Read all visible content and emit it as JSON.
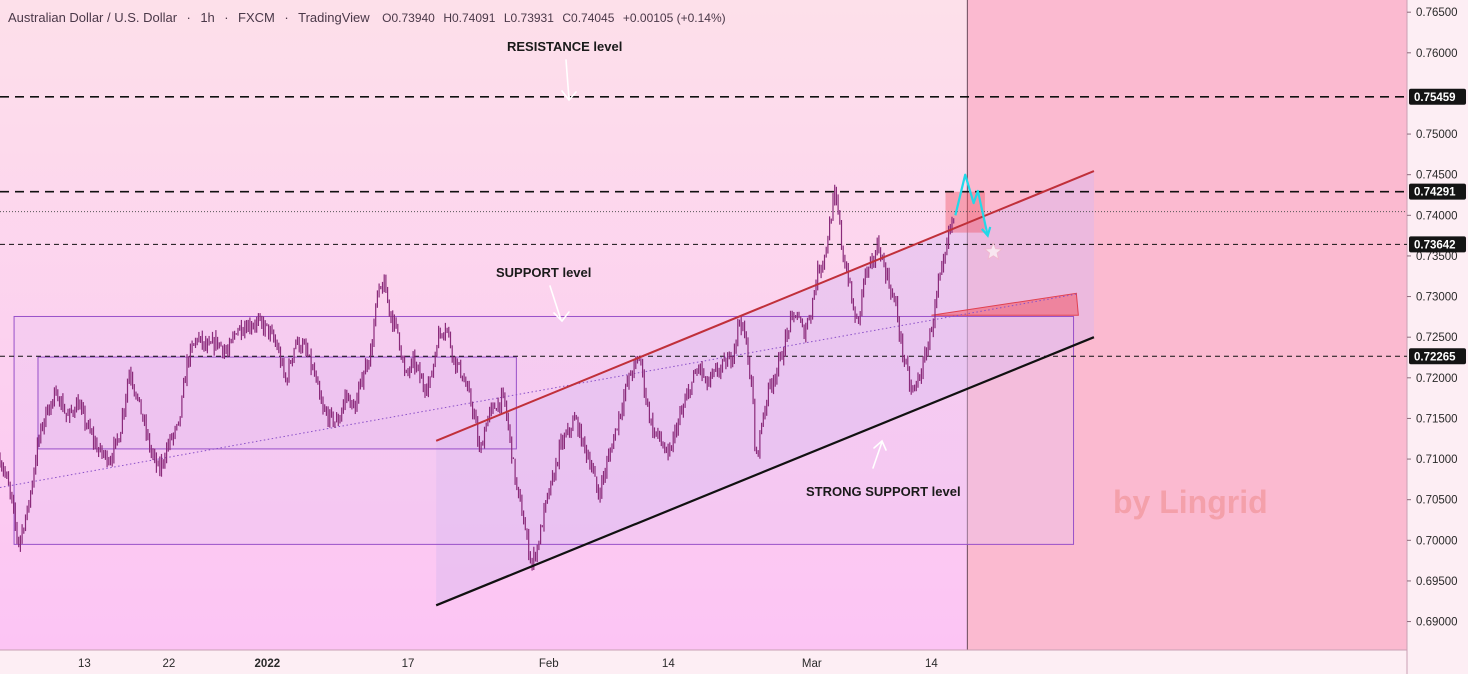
{
  "header": {
    "symbol": "Australian Dollar / U.S. Dollar",
    "interval": "1h",
    "exchange": "FXCM",
    "platform": "TradingView",
    "sep": "·",
    "open_label": "O",
    "open": "0.73940",
    "high_label": "H",
    "high": "0.74091",
    "low_label": "L",
    "low": "0.73931",
    "close_label": "C",
    "close": "0.74045",
    "change": "+0.00105 (+0.14%)"
  },
  "annotations": {
    "resistance": "RESISTANCE level",
    "support": "SUPPORT level",
    "strong_support": "STRONG SUPPORT level",
    "watermark": "by Lingrid"
  },
  "colors": {
    "background_top": "#fde0ea",
    "background_bottom": "#fcc4f4",
    "forecast_zone": "#fbbad0",
    "candle": "#8a2a7a",
    "resistance_trendline": "#c0303a",
    "support_trendline": "#111111",
    "forecast_path": "#22d8e8",
    "badge": "#141414",
    "box_stroke": "#9850c8"
  },
  "chart_data": {
    "type": "candlestick",
    "y_axis": {
      "ylim": [
        0.6865,
        0.7665
      ],
      "ticks": [
        "0.76500",
        "0.76000",
        "0.75000",
        "0.74500",
        "0.74000",
        "0.73500",
        "0.73000",
        "0.72500",
        "0.72000",
        "0.71500",
        "0.71000",
        "0.70500",
        "0.70000",
        "0.69500",
        "0.69000"
      ],
      "tick_values": [
        0.765,
        0.76,
        0.75,
        0.745,
        0.74,
        0.735,
        0.73,
        0.725,
        0.72,
        0.715,
        0.71,
        0.705,
        0.7,
        0.695,
        0.69
      ]
    },
    "x_axis": {
      "ticks": [
        {
          "label": "13",
          "pos": 0.06,
          "bold": false
        },
        {
          "label": "22",
          "pos": 0.12,
          "bold": false
        },
        {
          "label": "2022",
          "pos": 0.19,
          "bold": true
        },
        {
          "label": "17",
          "pos": 0.29,
          "bold": false
        },
        {
          "label": "Feb",
          "pos": 0.39,
          "bold": false
        },
        {
          "label": "14",
          "pos": 0.475,
          "bold": false
        },
        {
          "label": "Mar",
          "pos": 0.577,
          "bold": false
        },
        {
          "label": "14",
          "pos": 0.662,
          "bold": false
        }
      ]
    },
    "horizontal_levels": [
      {
        "price": 0.75459,
        "label": "0.75459",
        "style": "long-dash"
      },
      {
        "price": 0.74291,
        "label": "0.74291",
        "style": "long-dash"
      },
      {
        "price": 0.73642,
        "label": "0.73642",
        "style": "short-dash"
      },
      {
        "price": 0.72265,
        "label": "0.72265",
        "style": "short-dash"
      }
    ],
    "current_price": 0.74045,
    "trendlines": [
      {
        "name": "resistance",
        "from": [
          0.31,
          0.71225
        ],
        "to": [
          0.7775,
          0.74545
        ]
      },
      {
        "name": "support",
        "from": [
          0.31,
          0.692
        ],
        "to": [
          0.7775,
          0.725
        ]
      },
      {
        "name": "long-support",
        "from": [
          0.0,
          0.7065
        ],
        "to": [
          0.765,
          0.7303
        ]
      }
    ],
    "boxes": [
      {
        "from": [
          0.01,
          0.72755
        ],
        "to": [
          0.763,
          0.6995
        ]
      },
      {
        "from": [
          0.027,
          0.72255
        ],
        "to": [
          0.367,
          0.71125
        ]
      }
    ],
    "zones": [
      {
        "from": [
          0.672,
          0.74291
        ],
        "to": [
          0.7,
          0.73787
        ]
      },
      {
        "from": [
          0.662,
          0.7277
        ],
        "to": [
          0.765,
          0.7304
        ]
      }
    ],
    "price_path": [
      [
        0.0,
        0.71
      ],
      [
        0.004,
        0.708
      ],
      [
        0.008,
        0.705
      ],
      [
        0.013,
        0.6995
      ],
      [
        0.02,
        0.704
      ],
      [
        0.027,
        0.712
      ],
      [
        0.033,
        0.716
      ],
      [
        0.041,
        0.718
      ],
      [
        0.048,
        0.715
      ],
      [
        0.055,
        0.717
      ],
      [
        0.062,
        0.714
      ],
      [
        0.07,
        0.711
      ],
      [
        0.078,
        0.71
      ],
      [
        0.085,
        0.713
      ],
      [
        0.092,
        0.721
      ],
      [
        0.1,
        0.716
      ],
      [
        0.107,
        0.711
      ],
      [
        0.113,
        0.7085
      ],
      [
        0.12,
        0.712
      ],
      [
        0.127,
        0.714
      ],
      [
        0.133,
        0.722
      ],
      [
        0.14,
        0.725
      ],
      [
        0.147,
        0.7235
      ],
      [
        0.154,
        0.7245
      ],
      [
        0.162,
        0.723
      ],
      [
        0.168,
        0.726
      ],
      [
        0.176,
        0.7265
      ],
      [
        0.183,
        0.7268
      ],
      [
        0.19,
        0.726
      ],
      [
        0.197,
        0.7238
      ],
      [
        0.203,
        0.7195
      ],
      [
        0.21,
        0.7245
      ],
      [
        0.217,
        0.7235
      ],
      [
        0.224,
        0.72
      ],
      [
        0.229,
        0.716
      ],
      [
        0.235,
        0.715
      ],
      [
        0.24,
        0.7145
      ],
      [
        0.246,
        0.718
      ],
      [
        0.252,
        0.716
      ],
      [
        0.258,
        0.7205
      ],
      [
        0.264,
        0.7235
      ],
      [
        0.268,
        0.73
      ],
      [
        0.273,
        0.7315
      ],
      [
        0.278,
        0.7275
      ],
      [
        0.283,
        0.7255
      ],
      [
        0.288,
        0.72
      ],
      [
        0.294,
        0.722
      ],
      [
        0.301,
        0.719
      ],
      [
        0.306,
        0.7195
      ],
      [
        0.311,
        0.725
      ],
      [
        0.317,
        0.7265
      ],
      [
        0.323,
        0.722
      ],
      [
        0.327,
        0.721
      ],
      [
        0.332,
        0.7185
      ],
      [
        0.337,
        0.7155
      ],
      [
        0.341,
        0.7105
      ],
      [
        0.346,
        0.715
      ],
      [
        0.352,
        0.7165
      ],
      [
        0.358,
        0.7175
      ],
      [
        0.362,
        0.713
      ],
      [
        0.367,
        0.7065
      ],
      [
        0.371,
        0.7035
      ],
      [
        0.375,
        0.6995
      ],
      [
        0.378,
        0.697
      ],
      [
        0.383,
        0.7
      ],
      [
        0.388,
        0.7045
      ],
      [
        0.393,
        0.7075
      ],
      [
        0.398,
        0.7115
      ],
      [
        0.403,
        0.713
      ],
      [
        0.409,
        0.715
      ],
      [
        0.414,
        0.712
      ],
      [
        0.42,
        0.7095
      ],
      [
        0.425,
        0.7055
      ],
      [
        0.43,
        0.7085
      ],
      [
        0.436,
        0.7125
      ],
      [
        0.441,
        0.716
      ],
      [
        0.446,
        0.7195
      ],
      [
        0.451,
        0.7215
      ],
      [
        0.455,
        0.7225
      ],
      [
        0.459,
        0.7175
      ],
      [
        0.464,
        0.7135
      ],
      [
        0.469,
        0.7125
      ],
      [
        0.475,
        0.71
      ],
      [
        0.48,
        0.7135
      ],
      [
        0.486,
        0.7165
      ],
      [
        0.492,
        0.7195
      ],
      [
        0.497,
        0.7215
      ],
      [
        0.502,
        0.719
      ],
      [
        0.508,
        0.7205
      ],
      [
        0.514,
        0.7215
      ],
      [
        0.52,
        0.7225
      ],
      [
        0.526,
        0.7275
      ],
      [
        0.531,
        0.7235
      ],
      [
        0.535,
        0.7175
      ],
      [
        0.537,
        0.7095
      ],
      [
        0.541,
        0.714
      ],
      [
        0.546,
        0.7185
      ],
      [
        0.551,
        0.7205
      ],
      [
        0.556,
        0.723
      ],
      [
        0.561,
        0.7265
      ],
      [
        0.566,
        0.728
      ],
      [
        0.571,
        0.7255
      ],
      [
        0.576,
        0.728
      ],
      [
        0.581,
        0.733
      ],
      [
        0.586,
        0.735
      ],
      [
        0.589,
        0.738
      ],
      [
        0.593,
        0.7425
      ],
      [
        0.596,
        0.74
      ],
      [
        0.599,
        0.735
      ],
      [
        0.603,
        0.7325
      ],
      [
        0.606,
        0.7285
      ],
      [
        0.61,
        0.7265
      ],
      [
        0.614,
        0.7325
      ],
      [
        0.619,
        0.7335
      ],
      [
        0.624,
        0.7365
      ],
      [
        0.628,
        0.734
      ],
      [
        0.632,
        0.7315
      ],
      [
        0.637,
        0.7285
      ],
      [
        0.641,
        0.7235
      ],
      [
        0.645,
        0.7205
      ],
      [
        0.648,
        0.718
      ],
      [
        0.652,
        0.7195
      ],
      [
        0.656,
        0.7215
      ],
      [
        0.66,
        0.7245
      ],
      [
        0.663,
        0.727
      ],
      [
        0.667,
        0.7315
      ],
      [
        0.671,
        0.734
      ],
      [
        0.675,
        0.7385
      ],
      [
        0.679,
        0.74
      ]
    ],
    "forecast": [
      [
        0.679,
        0.74
      ],
      [
        0.686,
        0.745
      ],
      [
        0.692,
        0.7415
      ],
      [
        0.695,
        0.743
      ],
      [
        0.702,
        0.7375
      ]
    ],
    "forecast_target": [
      0.706,
      0.7355
    ]
  }
}
